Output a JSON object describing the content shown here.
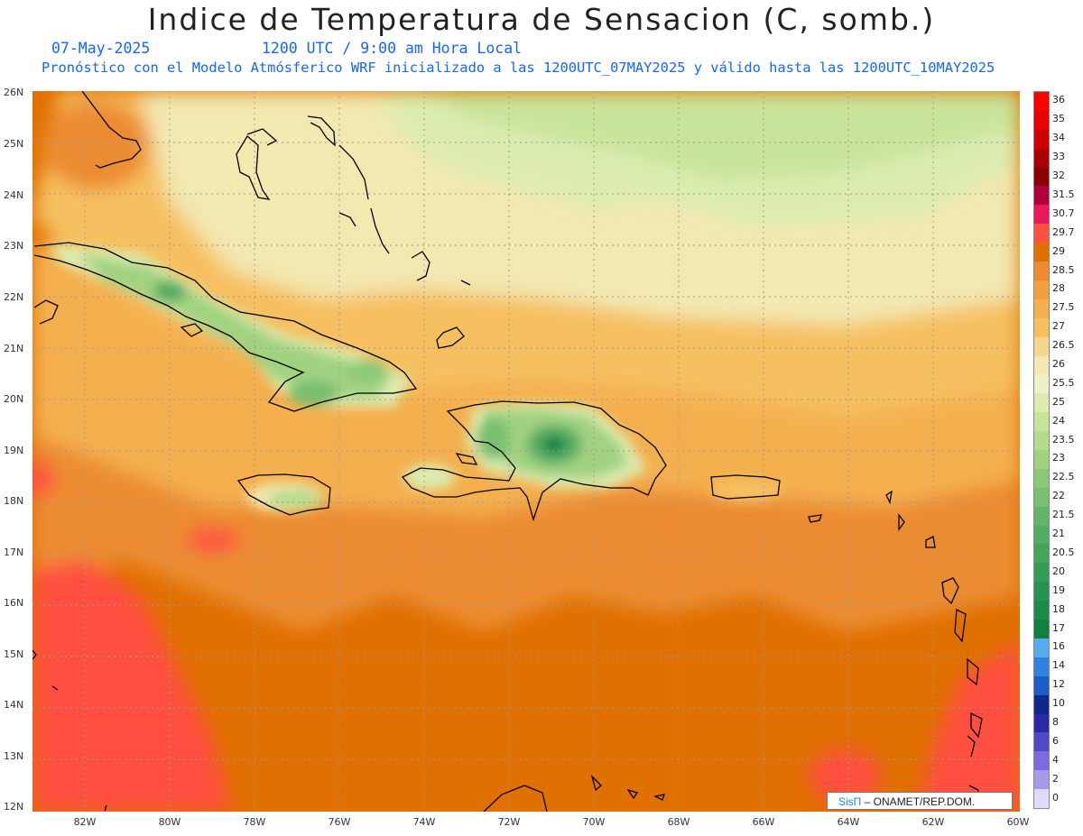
{
  "header": {
    "title": "Indice de Temperatura de Sensacion (C, somb.)",
    "date": "07-May-2025",
    "time": "1200 UTC / 9:00 am Hora Local",
    "forecast_line": "Pronóstico con el Modelo Atmósferico WRF inicializado a las 1200UTC_07MAY2025 y válido hasta las  1200UTC_10MAY2025"
  },
  "map": {
    "lat_labels": [
      "26N",
      "25N",
      "24N",
      "23N",
      "22N",
      "21N",
      "20N",
      "19N",
      "18N",
      "17N",
      "16N",
      "15N",
      "14N",
      "13N",
      "12N"
    ],
    "lon_labels": [
      "82W",
      "80W",
      "78W",
      "76W",
      "74W",
      "72W",
      "70W",
      "68W",
      "66W",
      "64W",
      "62W",
      "60W"
    ],
    "colorbar": [
      {
        "label": "36",
        "color": "#ff0000"
      },
      {
        "label": "35",
        "color": "#e80000"
      },
      {
        "label": "34",
        "color": "#cc0000"
      },
      {
        "label": "33",
        "color": "#a80000"
      },
      {
        "label": "32",
        "color": "#8a0000"
      },
      {
        "label": "31.5",
        "color": "#b0003a"
      },
      {
        "label": "30.7",
        "color": "#e8185a"
      },
      {
        "label": "29.7",
        "color": "#ff5040"
      },
      {
        "label": "29",
        "color": "#e07000"
      },
      {
        "label": "28.5",
        "color": "#ec8c30"
      },
      {
        "label": "28",
        "color": "#f0a040"
      },
      {
        "label": "27.5",
        "color": "#f4b050"
      },
      {
        "label": "27",
        "color": "#f6c060"
      },
      {
        "label": "26.5",
        "color": "#f4d890"
      },
      {
        "label": "26",
        "color": "#f2e8b0"
      },
      {
        "label": "25.5",
        "color": "#eef0c8"
      },
      {
        "label": "25",
        "color": "#dcecb0"
      },
      {
        "label": "24",
        "color": "#c8e49a"
      },
      {
        "label": "23.5",
        "color": "#b4dc8c"
      },
      {
        "label": "23",
        "color": "#a0d280"
      },
      {
        "label": "22.5",
        "color": "#8cc878"
      },
      {
        "label": "22",
        "color": "#78c070"
      },
      {
        "label": "21.5",
        "color": "#64b468"
      },
      {
        "label": "21",
        "color": "#54ac64"
      },
      {
        "label": "20.5",
        "color": "#44a45c"
      },
      {
        "label": "20",
        "color": "#349c54"
      },
      {
        "label": "19",
        "color": "#249450"
      },
      {
        "label": "18",
        "color": "#1a8c48"
      },
      {
        "label": "17",
        "color": "#108040"
      },
      {
        "label": "16",
        "color": "#5aaaf0"
      },
      {
        "label": "14",
        "color": "#2e82e0"
      },
      {
        "label": "12",
        "color": "#1c5cc8"
      },
      {
        "label": "10",
        "color": "#10288c"
      },
      {
        "label": "8",
        "color": "#2a2aa8"
      },
      {
        "label": "6",
        "color": "#5048c4"
      },
      {
        "label": "4",
        "color": "#7a6cdc"
      },
      {
        "label": "2",
        "color": "#a898ec"
      },
      {
        "label": "0",
        "color": "#dcdcfa"
      }
    ]
  },
  "credit": {
    "brand": "SisΠ",
    "text": " – ONAMET/REP.DOM."
  }
}
